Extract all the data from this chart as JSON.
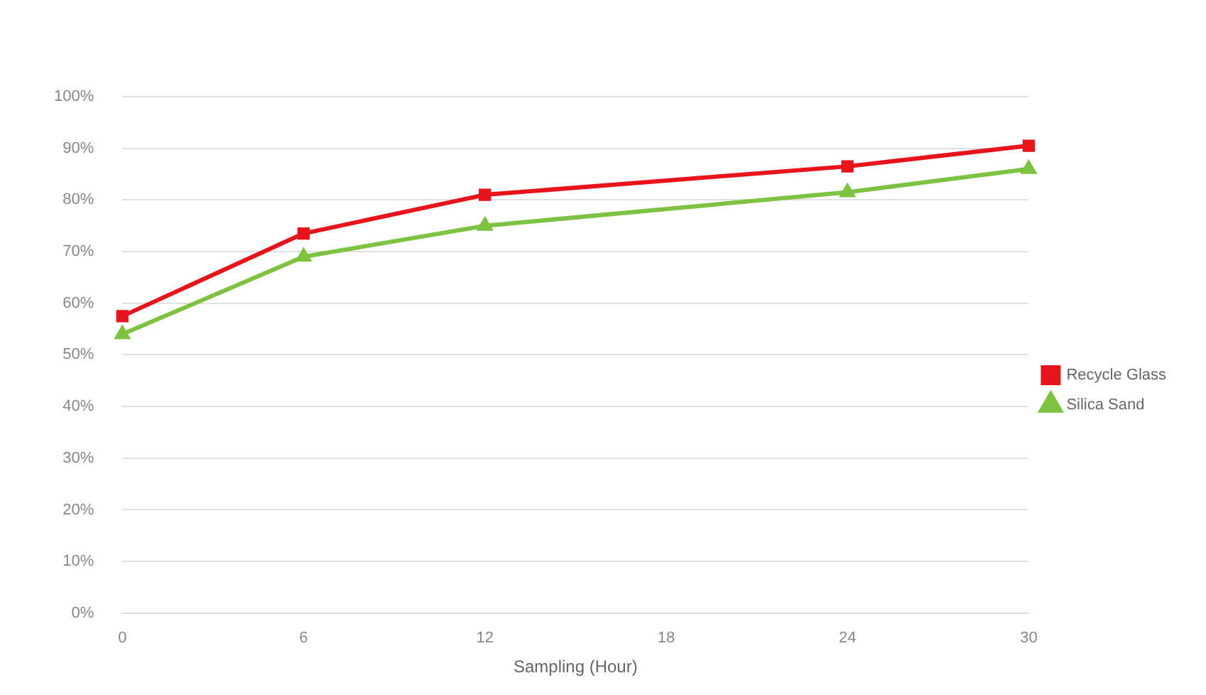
{
  "chart_data": {
    "type": "line",
    "xlabel": "Sampling (Hour)",
    "categories": [
      "0",
      "6",
      "12",
      "18",
      "24",
      "30"
    ],
    "series": [
      {
        "name": "Recycle Glass",
        "color": "#e8141c",
        "marker": "square",
        "values": [
          57.5,
          73.5,
          81,
          null,
          86.5,
          90.5
        ]
      },
      {
        "name": "Silica Sand",
        "color": "#7dc241",
        "marker": "triangle",
        "values": [
          54,
          69,
          75,
          null,
          81.5,
          86
        ]
      }
    ],
    "ylim": [
      0,
      100
    ],
    "yticks": [
      {
        "value": 0,
        "label": "0%"
      },
      {
        "value": 10,
        "label": "10%"
      },
      {
        "value": 20,
        "label": "20%"
      },
      {
        "value": 30,
        "label": "30%"
      },
      {
        "value": 40,
        "label": "40%"
      },
      {
        "value": 50,
        "label": "50%"
      },
      {
        "value": 60,
        "label": "60%"
      },
      {
        "value": 70,
        "label": "70%"
      },
      {
        "value": 80,
        "label": "80%"
      },
      {
        "value": 90,
        "label": "90%"
      },
      {
        "value": 100,
        "label": "100%"
      }
    ],
    "grid": "y",
    "legend": "right"
  }
}
